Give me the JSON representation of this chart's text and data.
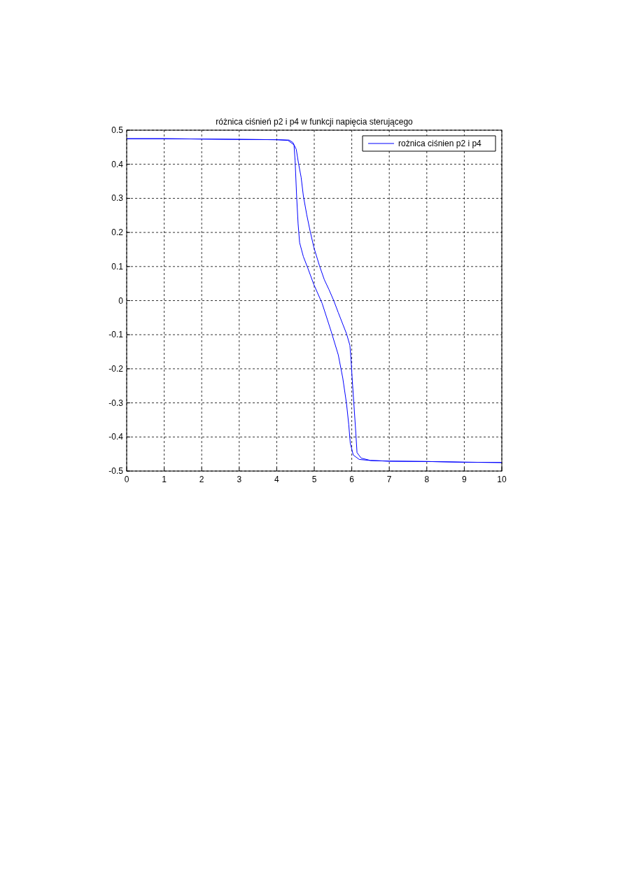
{
  "chart_data": {
    "type": "line",
    "title": "różnica ciśnień p2 i p4 w funkcji napięcia sterującego",
    "series": [
      {
        "name": "rożnica ciśnien p2 i p4",
        "color": "#0000ff",
        "x": [
          0,
          1,
          2,
          3,
          4,
          4.3,
          4.46,
          4.49,
          4.53,
          4.57,
          4.61,
          4.71,
          4.83,
          4.99,
          5.21,
          5.45,
          5.64,
          5.76,
          5.86,
          5.92,
          5.96,
          6.04,
          6.2,
          6.5,
          7,
          8,
          9,
          10
        ],
        "values": [
          0.475,
          0.475,
          0.474,
          0.473,
          0.472,
          0.47,
          0.457,
          0.41,
          0.307,
          0.225,
          0.17,
          0.129,
          0.095,
          0.047,
          -0.008,
          -0.09,
          -0.159,
          -0.227,
          -0.302,
          -0.364,
          -0.418,
          -0.453,
          -0.466,
          -0.469,
          -0.471,
          -0.472,
          -0.474,
          -0.475
        ]
      },
      {
        "color": "#0000ff",
        "x": [
          0,
          1,
          2,
          3,
          4,
          4.33,
          4.43,
          4.52,
          4.58,
          4.65,
          4.71,
          4.8,
          4.89,
          4.99,
          5.14,
          5.27,
          5.39,
          5.52,
          5.64,
          5.76,
          5.86,
          5.95,
          5.98,
          6.01,
          6.06,
          6.11,
          6.14,
          6.25,
          6.5,
          7,
          8,
          9,
          10
        ],
        "values": [
          0.475,
          0.475,
          0.474,
          0.473,
          0.472,
          0.471,
          0.464,
          0.444,
          0.403,
          0.362,
          0.307,
          0.252,
          0.204,
          0.156,
          0.102,
          0.061,
          0.033,
          0,
          -0.035,
          -0.069,
          -0.097,
          -0.131,
          -0.172,
          -0.227,
          -0.309,
          -0.391,
          -0.446,
          -0.462,
          -0.469,
          -0.471,
          -0.472,
          -0.474,
          -0.475
        ]
      }
    ],
    "xlim": [
      0,
      10
    ],
    "xticks": [
      0,
      1,
      2,
      3,
      4,
      5,
      6,
      7,
      8,
      9,
      10
    ],
    "ylim": [
      -0.5,
      0.5
    ],
    "yticks": [
      -0.5,
      -0.4,
      -0.3,
      -0.2,
      -0.1,
      0,
      0.1,
      0.2,
      0.3,
      0.4,
      0.5
    ],
    "grid": true,
    "legend": "top right",
    "line_style": "solid",
    "marker": "none"
  }
}
